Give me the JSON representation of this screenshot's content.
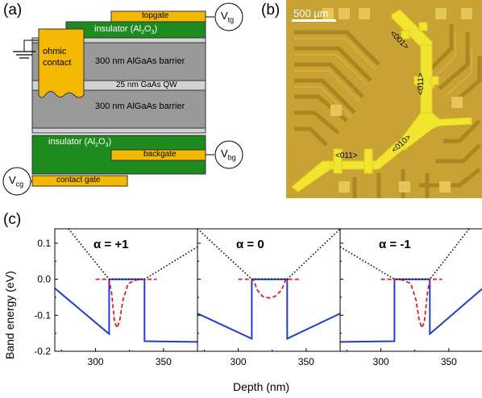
{
  "figure": {
    "panel_a": {
      "label": "(a)",
      "topgate": "topgate",
      "insulator_top": "insulator (Al",
      "insulator_top_sub": "2",
      "insulator_top_o": "O",
      "insulator_top_sub2": "3",
      "insulator_top_end": ")",
      "ohmic1": "ohmic",
      "ohmic2": "contact",
      "barrier_top": "300 nm AlGaAs barrier",
      "qw": "25 nm GaAs QW",
      "barrier_bottom": "300 nm AlGaAs barrier",
      "insulator_bot": "insulator (Al",
      "insulator_bot_sub": "2",
      "insulator_bot_o": "O",
      "insulator_bot_sub2": "3",
      "insulator_bot_end": ")",
      "backgate": "backgate",
      "contact_gate": "contact gate",
      "vtg": "V",
      "vtg_sub": "tg",
      "vbg": "V",
      "vbg_sub": "bg",
      "vcg": "V",
      "vcg_sub": "cg",
      "colors": {
        "gate": "#F5B800",
        "insulator": "#1E8B1E",
        "barrier": "#999999",
        "qw": "#D3D3D3"
      }
    },
    "panel_b": {
      "label": "(b)",
      "scalebar": "500 µm",
      "dir_001": "<001>",
      "dir_011_vertical": "<011>",
      "dir_010": "<010>",
      "dir_011_horizontal": "<011>",
      "colors": {
        "background": "#C9A234",
        "device": "#F2E530"
      }
    },
    "panel_c": {
      "label": "(c)",
      "ylabel": "Band energy (eV)",
      "xlabel": "Depth (nm)",
      "yticks": [
        "0.1",
        "0.0",
        "-0.1",
        "-0.2"
      ],
      "xticks": [
        "300",
        "350"
      ]
    }
  },
  "chart_data": [
    {
      "type": "line",
      "title": "α = +1",
      "xlim": [
        270,
        375
      ],
      "ylim": [
        -0.2,
        0.14
      ],
      "series": [
        {
          "style": "solid",
          "color": "#1F3FD0",
          "x": [
            270,
            310,
            310,
            318,
            336,
            336,
            375
          ],
          "y": [
            -0.025,
            -0.152,
            0.0,
            0.0,
            0.0,
            -0.172,
            -0.174
          ]
        },
        {
          "style": "dashed",
          "color": "#E02020",
          "x": [
            300,
            310,
            312,
            314,
            316,
            318,
            320,
            324,
            330,
            336,
            345
          ],
          "y": [
            0,
            0,
            -0.045,
            -0.12,
            -0.135,
            -0.11,
            -0.06,
            -0.012,
            -0.002,
            0,
            0
          ]
        },
        {
          "style": "dotted",
          "color": "#000000",
          "x": [
            280,
            310,
            336,
            375
          ],
          "y": [
            0.14,
            0.0,
            0.0,
            0.09
          ]
        }
      ]
    },
    {
      "type": "line",
      "title": "α = 0",
      "xlim": [
        270,
        375
      ],
      "ylim": [
        -0.2,
        0.14
      ],
      "series": [
        {
          "style": "solid",
          "color": "#1F3FD0",
          "x": [
            270,
            310,
            310,
            336,
            336,
            375
          ],
          "y": [
            -0.095,
            -0.165,
            0.0,
            0.0,
            -0.165,
            -0.095
          ]
        },
        {
          "style": "dashed",
          "color": "#E02020",
          "x": [
            300,
            311,
            314,
            318,
            323,
            327,
            332,
            335,
            346
          ],
          "y": [
            0,
            0,
            -0.03,
            -0.048,
            -0.052,
            -0.048,
            -0.03,
            0,
            0
          ]
        },
        {
          "style": "dotted",
          "color": "#000000",
          "x": [
            270,
            310,
            336,
            375
          ],
          "y": [
            0.14,
            0.0,
            0.0,
            0.14
          ]
        }
      ]
    },
    {
      "type": "line",
      "title": "α = -1",
      "xlim": [
        270,
        375
      ],
      "ylim": [
        -0.2,
        0.14
      ],
      "series": [
        {
          "style": "solid",
          "color": "#1F3FD0",
          "x": [
            270,
            310,
            310,
            336,
            336,
            375
          ],
          "y": [
            -0.174,
            -0.172,
            0.0,
            0.0,
            -0.152,
            -0.025
          ]
        },
        {
          "style": "dashed",
          "color": "#E02020",
          "x": [
            300,
            310,
            316,
            322,
            326,
            328,
            330,
            332,
            334,
            336,
            345
          ],
          "y": [
            0,
            0,
            -0.002,
            -0.012,
            -0.06,
            -0.11,
            -0.135,
            -0.12,
            -0.045,
            0,
            0
          ]
        },
        {
          "style": "dotted",
          "color": "#000000",
          "x": [
            270,
            310,
            336,
            365
          ],
          "y": [
            0.09,
            0.0,
            0.0,
            0.14
          ]
        }
      ]
    }
  ]
}
